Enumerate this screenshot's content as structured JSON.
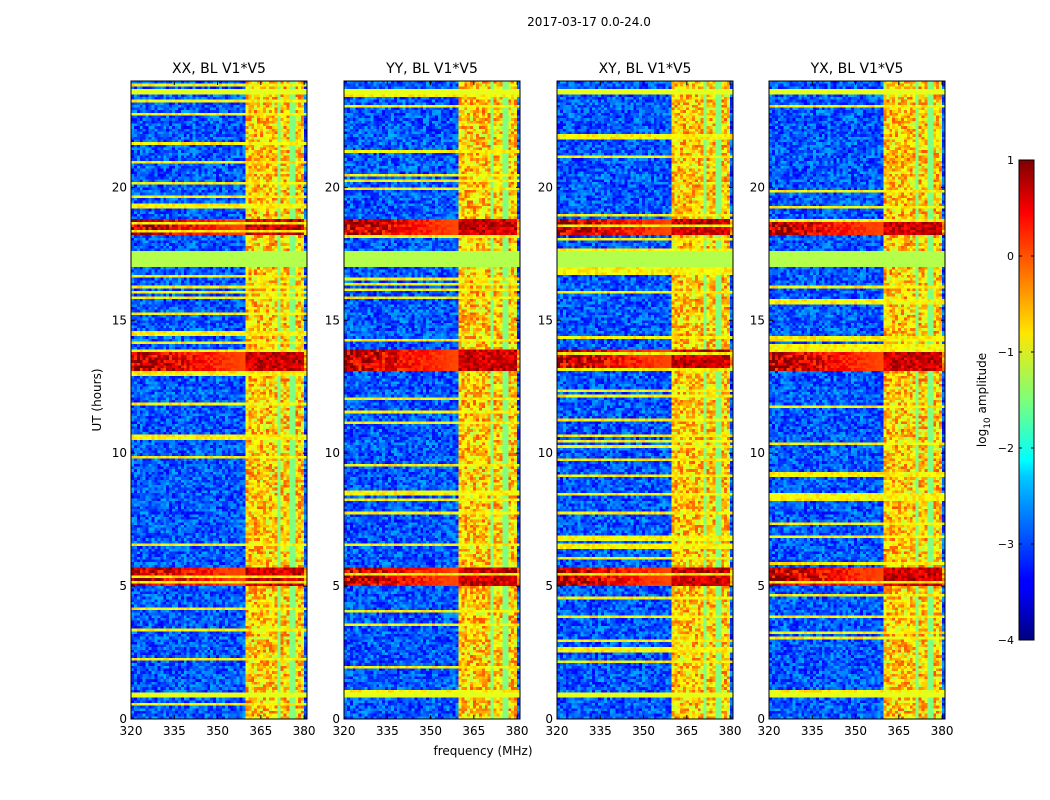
{
  "chart_data": {
    "type": "heatmap",
    "suptitle": "2017-03-17 0.0-24.0",
    "xlabel": "frequency (MHz)",
    "ylabel": "UT (hours)",
    "xlim": [
      320,
      381
    ],
    "ylim": [
      0,
      24
    ],
    "xticks": [
      320,
      335,
      350,
      365,
      380
    ],
    "yticks": [
      0,
      5,
      10,
      15,
      20
    ],
    "colormap": "jet",
    "colorbar": {
      "label": "log",
      "label_sub": "10",
      "label_suffix": " amplitude",
      "range": [
        -4,
        1
      ],
      "ticks": [
        -4,
        -3,
        -2,
        -1,
        0,
        1
      ],
      "tick_labels": [
        "−4",
        "−3",
        "−2",
        "−1",
        "0",
        "1"
      ]
    },
    "panels": [
      {
        "title": "XX, BL V1*V5",
        "baseline": "V1*V5",
        "pol": "XX",
        "strong_band_mhz": [
          360,
          380
        ],
        "strong_rows_ut": [
          5.3,
          13.5,
          18.5
        ],
        "flagged_ut": [
          [
            17.0,
            17.6
          ]
        ]
      },
      {
        "title": "YY, BL V1*V5",
        "baseline": "V1*V5",
        "pol": "YY",
        "strong_band_mhz": [
          360,
          380
        ],
        "strong_rows_ut": [
          5.3,
          13.5,
          18.5
        ],
        "flagged_ut": [
          [
            17.0,
            17.6
          ]
        ]
      },
      {
        "title": "XY, BL V1*V5",
        "baseline": "V1*V5",
        "pol": "XY",
        "strong_band_mhz": [
          360,
          380
        ],
        "strong_rows_ut": [
          5.3,
          13.5,
          18.5
        ],
        "flagged_ut": [
          [
            17.0,
            17.6
          ]
        ]
      },
      {
        "title": "YX, BL V1*V5",
        "baseline": "V1*V5",
        "pol": "YX",
        "strong_band_mhz": [
          360,
          380
        ],
        "strong_rows_ut": [
          5.3,
          13.5,
          18.5
        ],
        "flagged_ut": [
          [
            17.0,
            17.6
          ]
        ]
      }
    ]
  }
}
